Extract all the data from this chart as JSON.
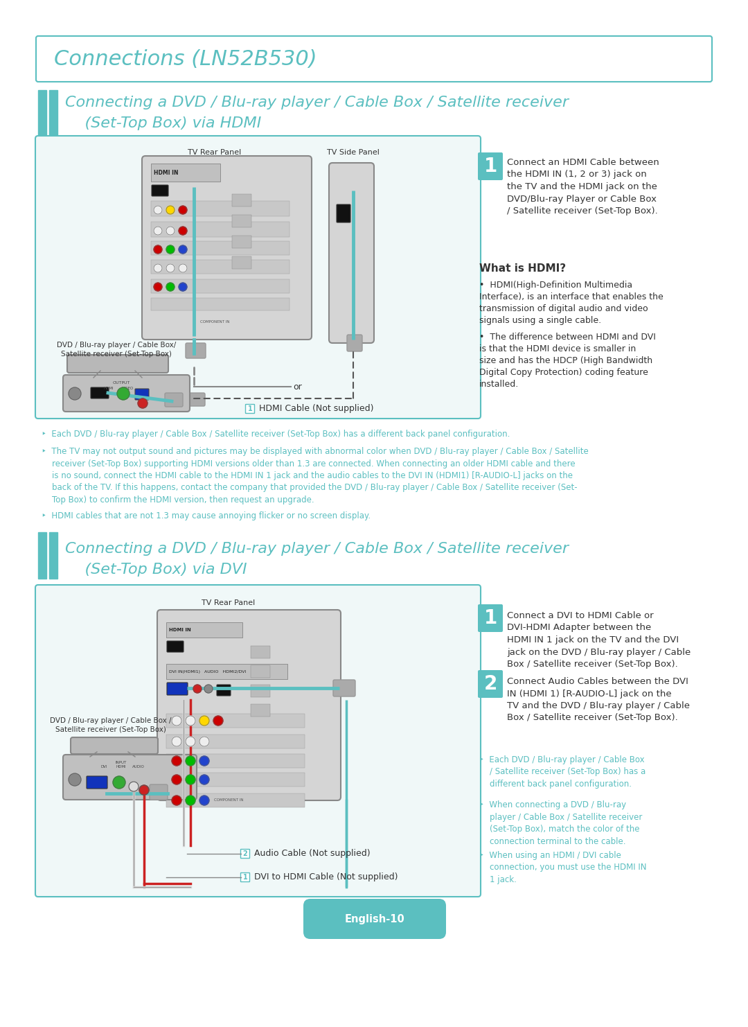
{
  "bg_color": "#ffffff",
  "teal": "#5BBFC0",
  "dark_gray": "#333333",
  "mid_gray": "#888888",
  "light_gray": "#CCCCCC",
  "panel_gray": "#C8C8C8",
  "panel_dark": "#AAAAAA",
  "title_box_text": "Connections (LN52B530)",
  "s1_line1": "Connecting a DVD / Blu-ray player / Cable Box / Satellite receiver",
  "s1_line2": "    (Set-Top Box) via HDMI",
  "s2_line1": "Connecting a DVD / Blu-ray player / Cable Box / Satellite receiver",
  "s2_line2": "    (Set-Top Box) via DVI",
  "tv_rear": "TV Rear Panel",
  "tv_side": "TV Side Panel",
  "dvd_lbl1": "DVD / Blu-ray player / Cable Box/",
  "dvd_lbl2": "Satellite receiver (Set-Top Box)",
  "dvd_lbl3": "DVD / Blu-ray player / Cable Box /",
  "dvd_lbl4": "Satellite receiver (Set-Top Box)",
  "hdmi_cable_lbl": "HDMI Cable (Not supplied)",
  "step1_hdmi": "Connect an HDMI Cable between\nthe HDMI IN (1, 2 or 3) jack on\nthe TV and the HDMI jack on the\nDVD/Blu-ray Player or Cable Box\n/ Satellite receiver (Set-Top Box).",
  "what_hdmi": "What is HDMI?",
  "b1": "HDMI(High-Definition Multimedia\nInterface), is an interface that enables the\ntransmission of digital audio and video\nsignals using a single cable.",
  "b2": "The difference between HDMI and DVI\nis that the HDMI device is smaller in\nsize and has the HDCP (High Bandwidth\nDigital Copy Protection) coding feature\ninstalled.",
  "note1": "‣  Each DVD / Blu-ray player / Cable Box / Satellite receiver (Set-Top Box) has a different back panel configuration.",
  "note2": "‣  The TV may not output sound and pictures may be displayed with abnormal color when DVD / Blu-ray player / Cable Box / Satellite\n    receiver (Set-Top Box) supporting HDMI versions older than 1.3 are connected. When connecting an older HDMI cable and there\n    is no sound, connect the HDMI cable to the HDMI IN 1 jack and the audio cables to the DVI IN (HDMI1) [R-AUDIO-L] jacks on the\n    back of the TV. If this happens, contact the company that provided the DVD / Blu-ray player / Cable Box / Satellite receiver (Set-\n    Top Box) to confirm the HDMI version, then request an upgrade.",
  "note3": "‣  HDMI cables that are not 1.3 may cause annoying flicker or no screen display.",
  "step1_dvi": "Connect a DVI to HDMI Cable or\nDVI-HDMI Adapter between the\nHDMI IN 1 jack on the TV and the DVI\njack on the DVD / Blu-ray player / Cable\nBox / Satellite receiver (Set-Top Box).",
  "step2_dvi": "Connect Audio Cables between the DVI\nIN (HDMI 1) [R-AUDIO-L] jack on the\nTV and the DVD / Blu-ray player / Cable\nBox / Satellite receiver (Set-Top Box).",
  "dn1": "‣  Each DVD / Blu-ray player / Cable Box\n    / Satellite receiver (Set-Top Box) has a\n    different back panel configuration.",
  "dn2": "‣  When connecting a DVD / Blu-ray\n    player / Cable Box / Satellite receiver\n    (Set-Top Box), match the color of the\n    connection terminal to the cable.",
  "dn3": "‣  When using an HDMI / DVI cable\n    connection, you must use the HDMI IN\n    1 jack.",
  "audio_lbl": "Audio Cable (Not supplied)",
  "dvi_lbl": "DVI to HDMI Cable (Not supplied)",
  "english": "English-10"
}
